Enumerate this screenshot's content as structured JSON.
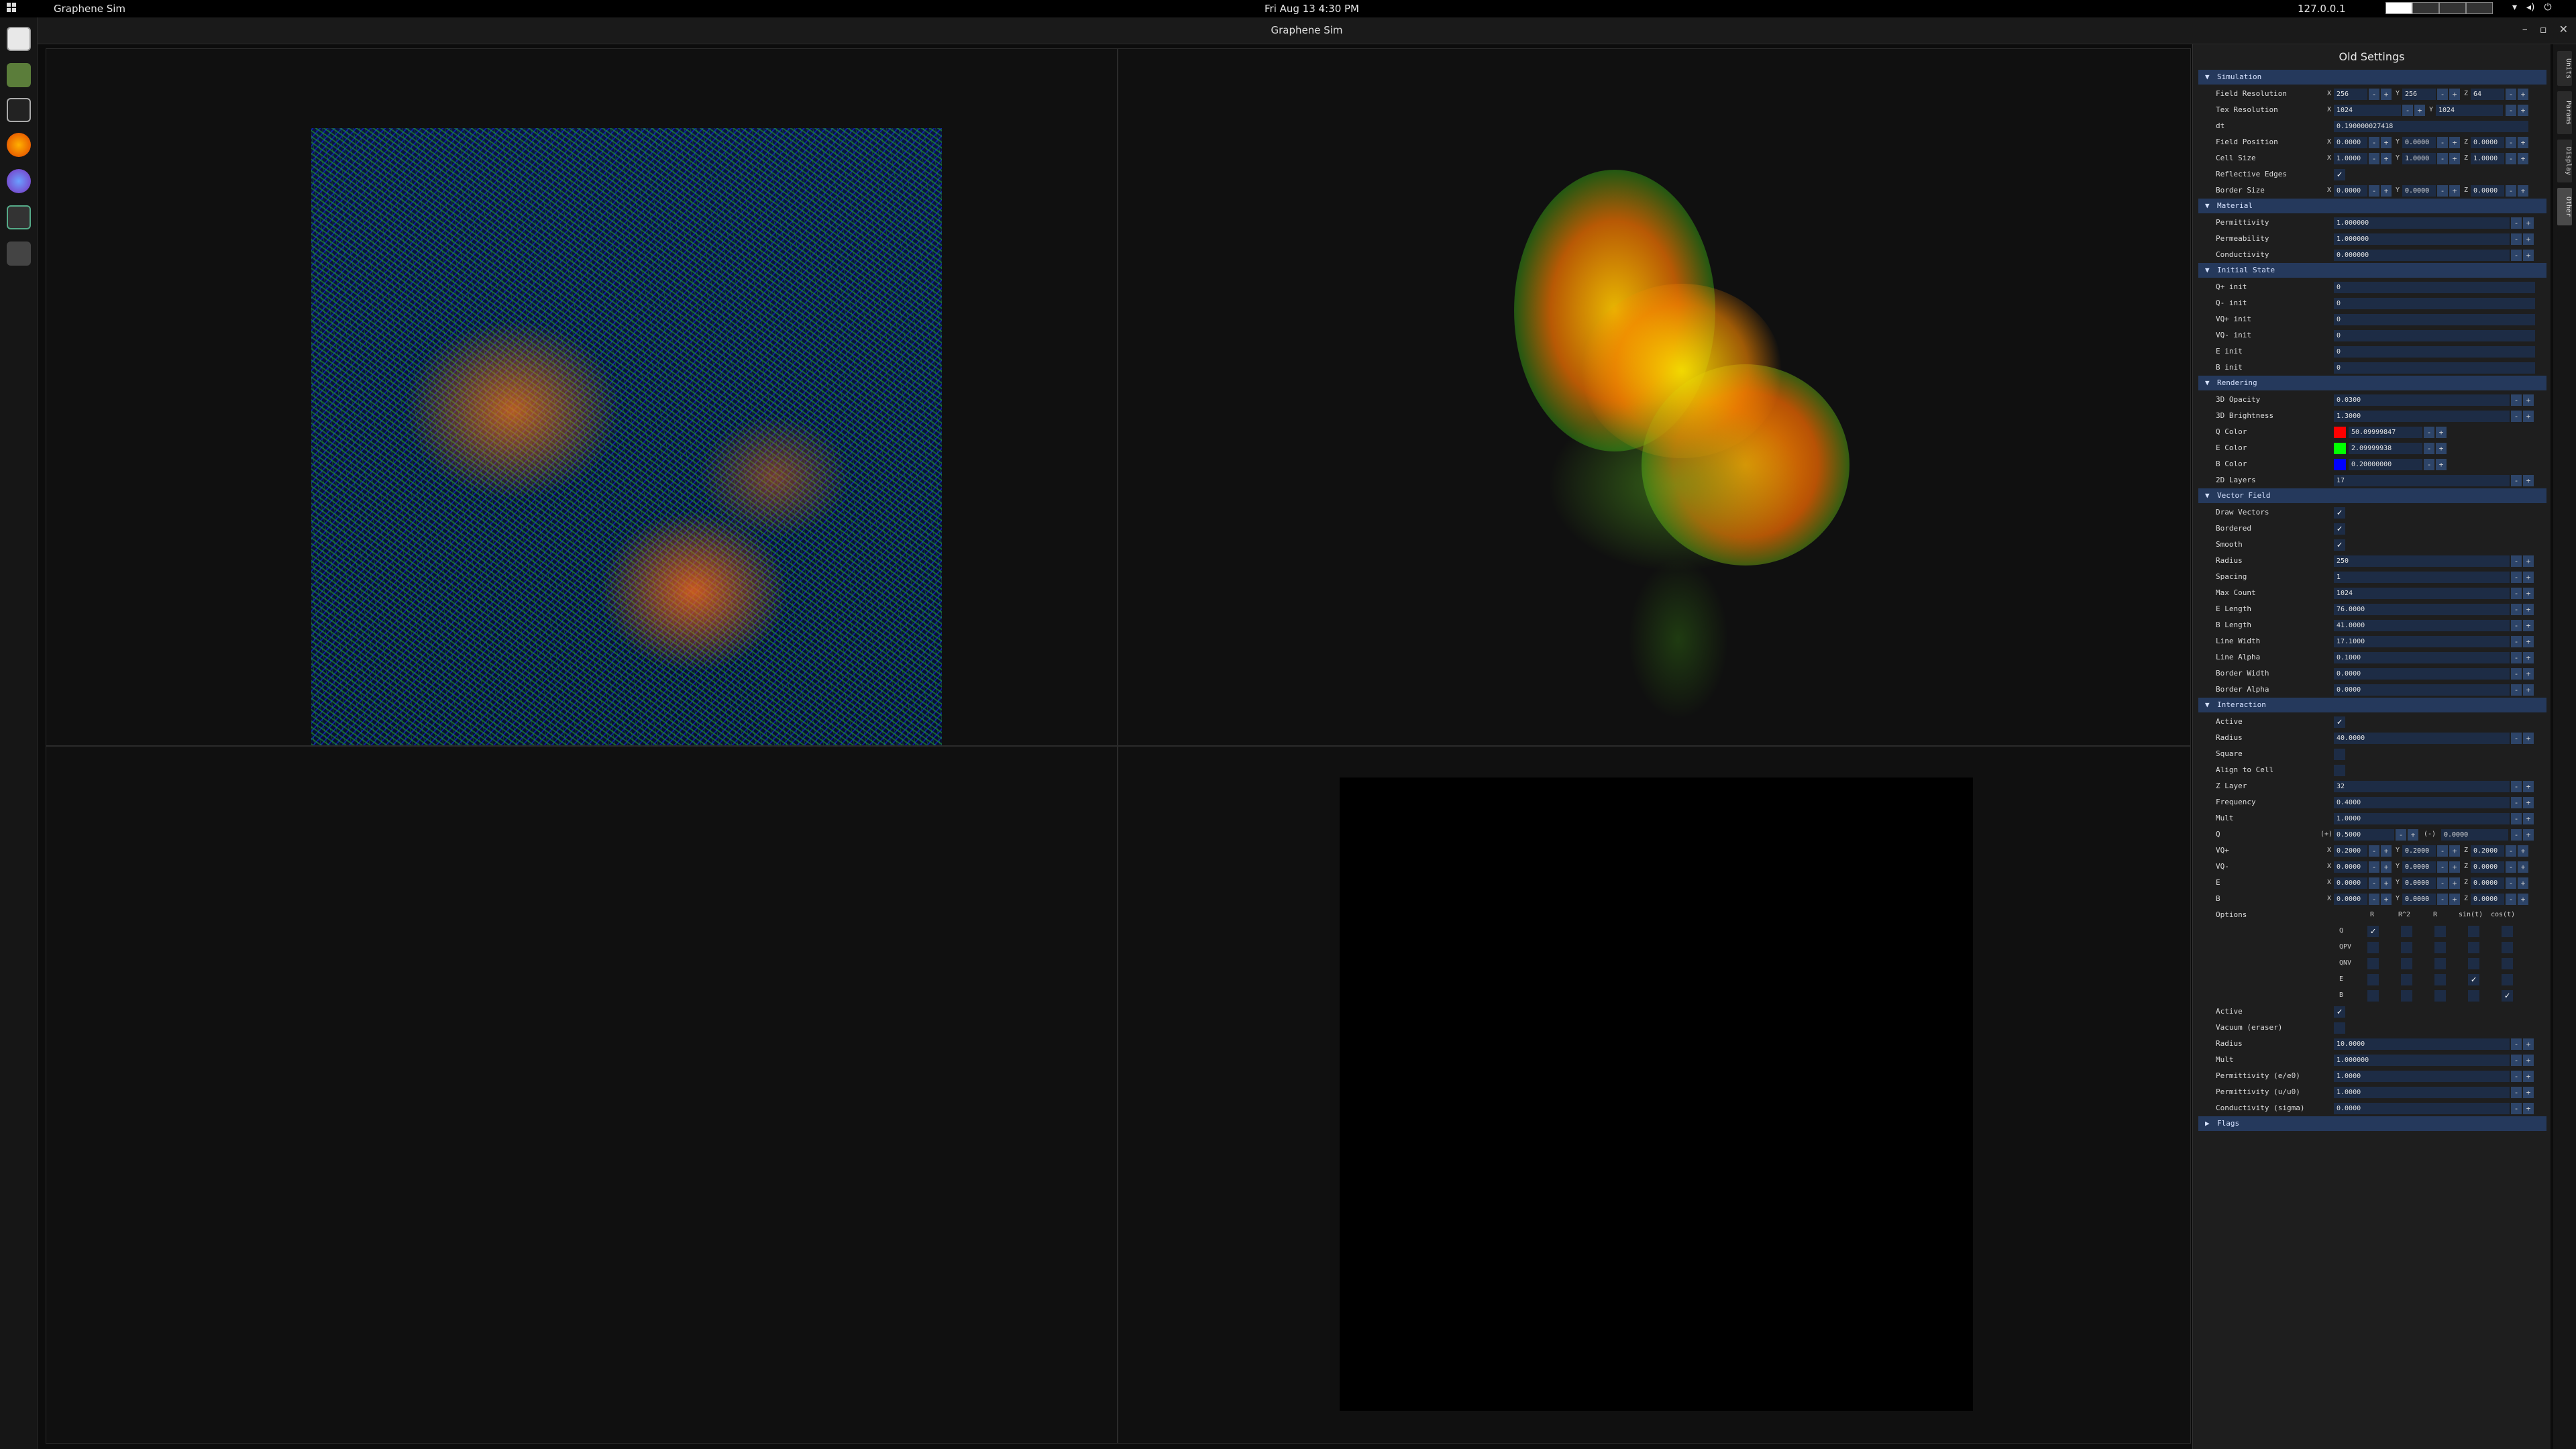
{
  "topbar": {
    "app_name": "Graphene Sim",
    "clock": "Fri Aug 13   4:30 PM",
    "ip": "127.0.0.1"
  },
  "window": {
    "title": "Graphene Sim"
  },
  "panel": {
    "title": "Old Settings"
  },
  "sections": {
    "simulation": "Simulation",
    "material": "Material",
    "initial_state": "Initial State",
    "rendering": "Rendering",
    "vector_field": "Vector Field",
    "interaction": "Interaction",
    "flags": "Flags"
  },
  "sim": {
    "field_res": {
      "label": "Field Resolution",
      "x": "256",
      "y": "256",
      "z": "64"
    },
    "tex_res": {
      "label": "Tex Resolution",
      "x": "1024",
      "y": "1024"
    },
    "dt": {
      "label": "dt",
      "value": "0.190000027418"
    },
    "field_pos": {
      "label": "Field Position",
      "x": "0.0000",
      "y": "0.0000",
      "z": "0.0000"
    },
    "cell_size": {
      "label": "Cell Size",
      "x": "1.0000",
      "y": "1.0000",
      "z": "1.0000"
    },
    "reflective": {
      "label": "Reflective Edges"
    },
    "border": {
      "label": "Border Size",
      "x": "0.0000",
      "y": "0.0000",
      "z": "0.0000"
    }
  },
  "material": {
    "perm": {
      "label": "Permittivity",
      "value": "1.000000"
    },
    "permeab": {
      "label": "Permeability",
      "value": "1.000000"
    },
    "cond": {
      "label": "Conductivity",
      "value": "0.000000"
    }
  },
  "init": {
    "qp": {
      "label": "Q+ init",
      "value": "0"
    },
    "qm": {
      "label": "Q- init",
      "value": "0"
    },
    "vqp": {
      "label": "VQ+ init",
      "value": "0"
    },
    "vqm": {
      "label": "VQ- init",
      "value": "0"
    },
    "e": {
      "label": "E init",
      "value": "0"
    },
    "b": {
      "label": "B init",
      "value": "0"
    }
  },
  "render": {
    "op3d": {
      "label": "3D Opacity",
      "value": "0.0300"
    },
    "br3d": {
      "label": "3D Brightness",
      "value": "1.3000"
    },
    "qc": {
      "label": "Q Color",
      "value": "50.09999847",
      "color": "#ff0000"
    },
    "ec": {
      "label": "E Color",
      "value": "2.09999938",
      "color": "#00ff00"
    },
    "bc": {
      "label": "B Color",
      "value": "0.20000000",
      "color": "#0000ff"
    },
    "layers": {
      "label": "2D Layers",
      "value": "17"
    }
  },
  "vf": {
    "draw": {
      "label": "Draw Vectors"
    },
    "bordered": {
      "label": "Bordered"
    },
    "smooth": {
      "label": "Smooth"
    },
    "radius": {
      "label": "Radius",
      "value": "250"
    },
    "spacing": {
      "label": "Spacing",
      "value": "1"
    },
    "maxc": {
      "label": "Max Count",
      "value": "1024"
    },
    "elen": {
      "label": "E Length",
      "value": "76.0000"
    },
    "blen": {
      "label": "B Length",
      "value": "41.0000"
    },
    "lw": {
      "label": "Line Width",
      "value": "17.1000"
    },
    "la": {
      "label": "Line Alpha",
      "value": "0.1000"
    },
    "bw": {
      "label": "Border Width",
      "value": "0.0000"
    },
    "ba": {
      "label": "Border Alpha",
      "value": "0.0000"
    }
  },
  "inter": {
    "active": {
      "label": "Active"
    },
    "radius": {
      "label": "Radius",
      "value": "40.0000"
    },
    "square": {
      "label": "Square"
    },
    "align": {
      "label": "Align to Cell"
    },
    "zlayer": {
      "label": "Z Layer",
      "value": "32"
    },
    "freq": {
      "label": "Frequency",
      "value": "0.4000"
    },
    "mult": {
      "label": "Mult",
      "value": "1.0000"
    },
    "q": {
      "label": "Q",
      "plus": "(+)",
      "pval": "0.5000",
      "minus": "(-)",
      "mval": "0.0000"
    },
    "vqp": {
      "label": "VQ+",
      "x": "0.2000",
      "y": "0.2000",
      "z": "0.2000"
    },
    "vqm": {
      "label": "VQ-",
      "x": "0.0000",
      "y": "0.0000",
      "z": "0.0000"
    },
    "e": {
      "label": "E",
      "x": "0.0000",
      "y": "0.0000",
      "z": "0.0000"
    },
    "b": {
      "label": "B",
      "x": "0.0000",
      "y": "0.0000",
      "z": "0.0000"
    },
    "options": {
      "label": "Options",
      "cols": [
        "R",
        "R^2",
        "R",
        "sin(t)",
        "cos(t)"
      ],
      "rows": [
        "Q",
        "QPV",
        "QNV",
        "E",
        "B"
      ]
    },
    "active2": {
      "label": "Active"
    },
    "vacuum": {
      "label": "Vacuum (eraser)"
    },
    "radius2": {
      "label": "Radius",
      "value": "10.0000"
    },
    "mult2": {
      "label": "Mult",
      "value": "1.000000"
    },
    "perm_e": {
      "label": "Permittivity (e/e0)",
      "value": "1.0000"
    },
    "perm_u": {
      "label": "Permittivity (u/u0)",
      "value": "1.0000"
    },
    "cond_s": {
      "label": "Conductivity (sigma)",
      "value": "0.0000"
    }
  },
  "vtabs": [
    "Units",
    "Params",
    "Display",
    "Other"
  ],
  "axis": {
    "x": "X",
    "y": "Y",
    "z": "Z"
  }
}
